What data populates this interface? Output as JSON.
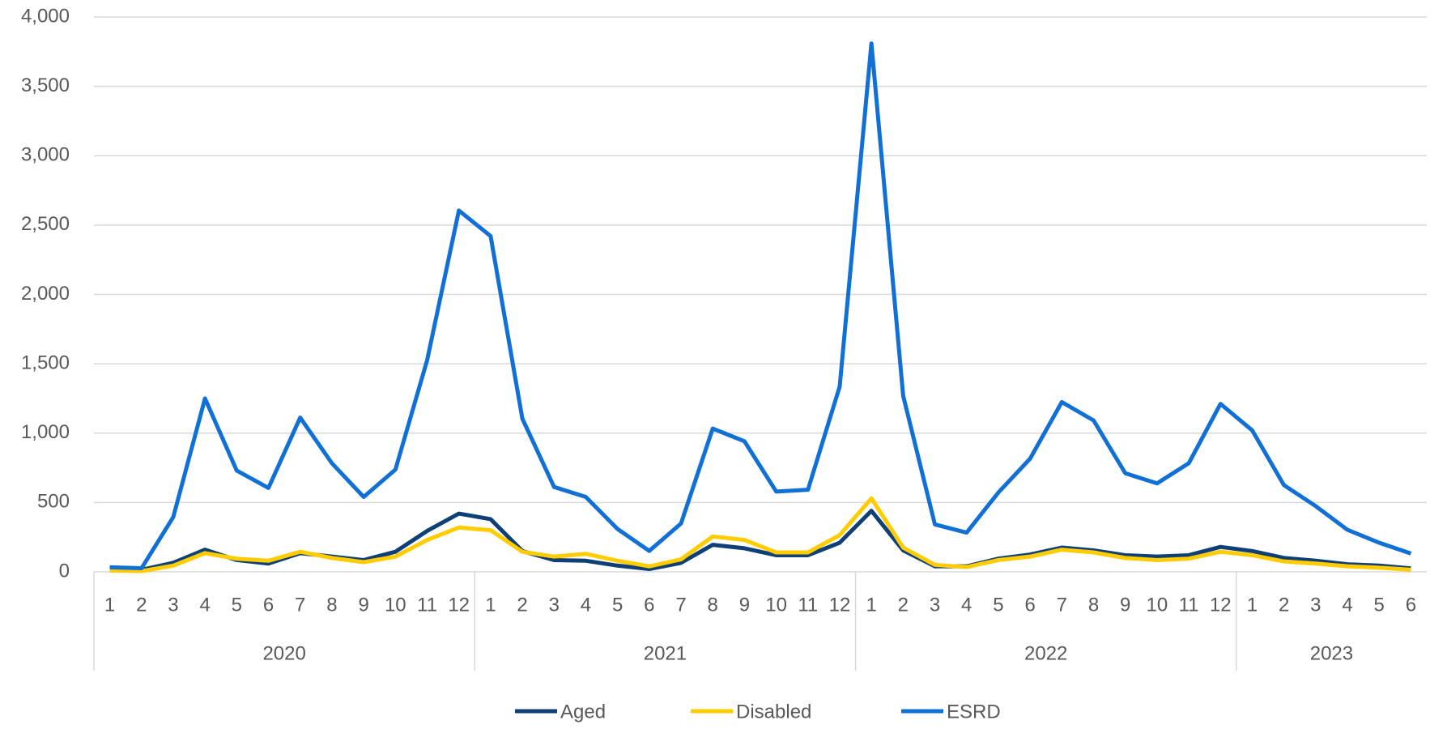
{
  "chart_data": {
    "type": "line",
    "groups": [
      {
        "name": "2020",
        "categories": [
          "1",
          "2",
          "3",
          "4",
          "5",
          "6",
          "7",
          "8",
          "9",
          "10",
          "11",
          "12"
        ]
      },
      {
        "name": "2021",
        "categories": [
          "1",
          "2",
          "3",
          "4",
          "5",
          "6",
          "7",
          "8",
          "9",
          "10",
          "11",
          "12"
        ]
      },
      {
        "name": "2022",
        "categories": [
          "1",
          "2",
          "3",
          "4",
          "5",
          "6",
          "7",
          "8",
          "9",
          "10",
          "11",
          "12"
        ]
      },
      {
        "name": "2023",
        "categories": [
          "1",
          "2",
          "3",
          "4",
          "5",
          "6"
        ]
      }
    ],
    "series": [
      {
        "name": "Aged",
        "color": "#0e3f77",
        "values": [
          25,
          15,
          65,
          160,
          85,
          60,
          135,
          110,
          85,
          145,
          295,
          420,
          380,
          150,
          85,
          80,
          45,
          20,
          65,
          195,
          170,
          120,
          120,
          210,
          440,
          155,
          40,
          40,
          95,
          125,
          175,
          155,
          120,
          110,
          120,
          180,
          150,
          100,
          80,
          55,
          45,
          25
        ]
      },
      {
        "name": "Disabled",
        "color": "#ffcc00",
        "values": [
          10,
          5,
          45,
          135,
          95,
          80,
          145,
          100,
          70,
          110,
          230,
          320,
          300,
          145,
          110,
          130,
          80,
          40,
          90,
          255,
          230,
          140,
          140,
          265,
          530,
          175,
          50,
          35,
          85,
          110,
          160,
          140,
          100,
          85,
          95,
          145,
          120,
          75,
          60,
          40,
          30,
          15
        ]
      },
      {
        "name": "ESRD",
        "color": "#1170d6",
        "values": [
          33,
          26,
          395,
          1250,
          730,
          605,
          1112,
          783,
          540,
          737,
          1526,
          2605,
          2421,
          1105,
          612,
          540,
          309,
          151,
          349,
          1033,
          941,
          579,
          592,
          1336,
          3809,
          1270,
          342,
          283,
          572,
          816,
          1224,
          1092,
          711,
          638,
          783,
          1211,
          1020,
          625,
          474,
          303,
          210,
          132
        ]
      }
    ],
    "ylim": [
      0,
      4000
    ],
    "yticks": [
      0,
      500,
      {
        "value": 1000,
        "label": "1,000"
      },
      {
        "value": 1500,
        "label": "1,500"
      },
      {
        "value": 2000,
        "label": "2,000"
      },
      {
        "value": 2500,
        "label": "2,500"
      },
      {
        "value": 3000,
        "label": "3,000"
      },
      {
        "value": 3500,
        "label": "3,500"
      },
      {
        "value": 4000,
        "label": "4,000"
      }
    ],
    "grid": true,
    "legend": "bottom"
  }
}
